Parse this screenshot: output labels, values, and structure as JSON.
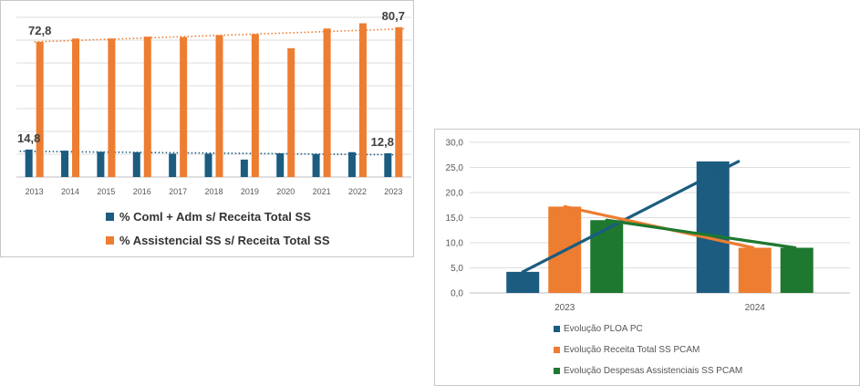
{
  "chart_data": [
    {
      "type": "bar",
      "categories": [
        "2013",
        "2014",
        "2015",
        "2016",
        "2017",
        "2018",
        "2019",
        "2020",
        "2021",
        "2022",
        "2023"
      ],
      "series": [
        {
          "name": "% Coml + Adm s/ Receita Total SS",
          "color": "#1b5c80",
          "values": [
            14.8,
            14.2,
            13.6,
            13.4,
            12.6,
            12.6,
            9.4,
            12.8,
            12.4,
            13.4,
            12.8
          ],
          "trendline": "linear-dotted"
        },
        {
          "name": "% Assistencial SS s/ Receita Total SS",
          "color": "#ed7d31",
          "values": [
            72.8,
            74.6,
            74.6,
            75.6,
            75.4,
            76.4,
            77.0,
            69.4,
            80.0,
            82.8,
            80.7
          ],
          "trendline": "linear-dotted"
        }
      ],
      "data_labels": [
        {
          "series": 0,
          "index": 0,
          "text": "14,8"
        },
        {
          "series": 0,
          "index": 10,
          "text": "12,8"
        },
        {
          "series": 1,
          "index": 0,
          "text": "72,8"
        },
        {
          "series": 1,
          "index": 10,
          "text": "80,7"
        }
      ],
      "ylim": [
        0,
        86
      ],
      "grid": true,
      "y_axis_labels_shown": false,
      "legend_position": "bottom"
    },
    {
      "type": "bar",
      "categories": [
        "2023",
        "2024"
      ],
      "series": [
        {
          "name": "Evolução PLOA PC",
          "color": "#1b5c80",
          "values": [
            4.2,
            26.2
          ]
        },
        {
          "name": "Evolução Receita Total SS PCAM",
          "color": "#ed7d31",
          "values": [
            17.2,
            9.0
          ]
        },
        {
          "name": "Evolução Despesas Assistenciais SS PCAM",
          "color": "#1e7830",
          "values": [
            14.5,
            9.0
          ]
        }
      ],
      "lines": [
        {
          "series": 0,
          "color": "#1b5c80",
          "values": [
            4.2,
            26.2
          ]
        },
        {
          "series": 1,
          "color": "#ed7d31",
          "values": [
            17.2,
            9.0
          ]
        },
        {
          "series": 2,
          "color": "#1e7830",
          "values": [
            14.5,
            9.0
          ]
        }
      ],
      "ylim": [
        0,
        30
      ],
      "yticks": [
        "0,0",
        "5,0",
        "10,0",
        "15,0",
        "20,0",
        "25,0",
        "30,0"
      ],
      "grid": true,
      "legend_position": "bottom"
    }
  ]
}
